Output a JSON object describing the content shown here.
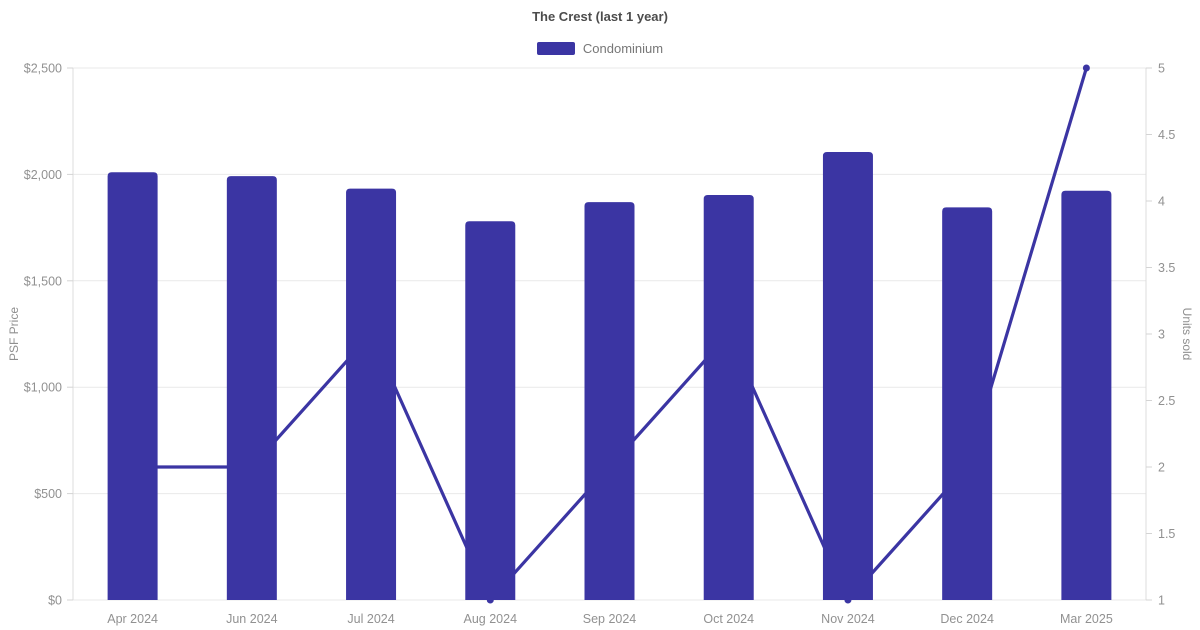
{
  "chart": {
    "title": "The Crest (last 1 year)",
    "legend": [
      "Condominium"
    ],
    "left_axis": {
      "title": "PSF Price",
      "ticks": [
        "$0",
        "$500",
        "$1,000",
        "$1,500",
        "$2,000",
        "$2,500"
      ]
    },
    "right_axis": {
      "title": "Units sold",
      "ticks": [
        "1",
        "1.5",
        "2",
        "2.5",
        "3",
        "3.5",
        "4",
        "4.5",
        "5"
      ]
    }
  },
  "chart_data": {
    "type": "bar",
    "title": "The Crest (last 1 year)",
    "categories": [
      "Apr 2024",
      "Jun 2024",
      "Jul 2024",
      "Aug 2024",
      "Sep 2024",
      "Oct 2024",
      "Nov 2024",
      "Dec 2024",
      "Mar 2025"
    ],
    "series": [
      {
        "name": "Condominium",
        "type": "bar",
        "axis": "left",
        "ylabel": "PSF Price",
        "values": [
          2010,
          1992,
          1933,
          1780,
          1870,
          1903,
          2105,
          1845,
          1923
        ]
      },
      {
        "name": "Units sold",
        "type": "line",
        "axis": "right",
        "ylabel": "Units sold",
        "values": [
          2,
          2,
          3,
          1,
          2,
          3,
          1,
          2,
          5
        ]
      }
    ],
    "left_ylim": [
      0,
      2500
    ],
    "left_step": 500,
    "right_ylim": [
      1,
      5
    ],
    "right_step": 0.5,
    "grid": "horizontal",
    "legend_position": "top-center",
    "colors": {
      "series": "#3b35a3",
      "grid": "#e9e9e9",
      "axis_line": "#dcdcdc",
      "tick_mark": "#d4d4d4",
      "tick_label": "#919191",
      "axis_title": "#8f8f8f",
      "title": "#4c4c4c",
      "legend_label": "#777777"
    }
  }
}
